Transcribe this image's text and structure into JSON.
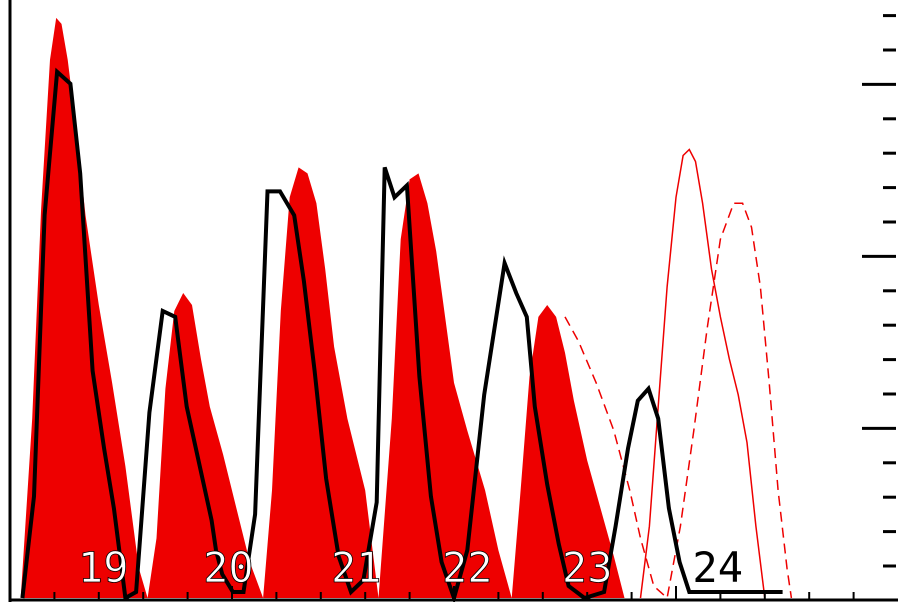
{
  "chart_data": {
    "type": "area",
    "title": "",
    "xlabel": "",
    "ylabel": "",
    "grid": false,
    "legend": "none",
    "xlim": [
      0,
      100
    ],
    "ylim": [
      0,
      100
    ],
    "colors": {
      "observed_fill": "#ee0000",
      "prediction_line": "#ee0000",
      "overlay_line": "#000000"
    },
    "cycle_labels": [
      {
        "text": "19",
        "x": 10.5
      },
      {
        "text": "20",
        "x": 24.6
      },
      {
        "text": "21",
        "x": 39.0
      },
      {
        "text": "22",
        "x": 51.5
      },
      {
        "text": "23",
        "x": 65.0
      },
      {
        "text": "24",
        "x": 79.7
      }
    ],
    "series": [
      {
        "style": "filled-area",
        "x": [
          1.2,
          2.5,
          3.5,
          4.5,
          5.2,
          5.8,
          6.5,
          7.5,
          8.5,
          10.0,
          11.5,
          13.0,
          14.5,
          15.5,
          16.5,
          17.5,
          18.5,
          19.5,
          20.5,
          21.5,
          22.5,
          24.0,
          25.5,
          27.0,
          28.5,
          29.5,
          30.5,
          31.5,
          32.5,
          33.5,
          34.5,
          35.5,
          36.5,
          38.0,
          40.0,
          41.5,
          43.0,
          44.0,
          45.0,
          46.0,
          47.0,
          48.0,
          49.0,
          50.0,
          51.5,
          53.5,
          55.0,
          56.5,
          57.5,
          58.5,
          59.5,
          60.5,
          61.5,
          62.5,
          63.5,
          65.0,
          66.5,
          68.0,
          69.2
        ],
        "y": [
          0,
          30,
          65,
          90,
          97,
          96,
          90,
          78,
          64,
          49,
          36,
          22,
          5,
          0,
          10,
          35,
          48,
          51,
          49,
          40,
          32,
          24,
          15,
          6,
          0,
          18,
          48,
          67,
          72,
          71,
          66,
          55,
          42,
          30,
          18,
          0,
          30,
          60,
          70,
          71,
          66,
          58,
          47,
          36,
          28,
          18,
          8,
          0,
          18,
          37,
          47,
          49,
          47,
          41,
          33,
          23,
          15,
          7,
          0
        ]
      },
      {
        "style": "solid-thin",
        "x": [
          71.0,
          72.0,
          73.0,
          74.0,
          75.0,
          75.8,
          76.5,
          77.2,
          78.0,
          79.0,
          80.0,
          81.0,
          82.0,
          83.0,
          84.0,
          85.0
        ],
        "y": [
          0,
          12,
          32,
          52,
          67,
          74,
          75,
          73,
          66,
          55,
          47,
          40,
          34,
          26,
          12,
          0
        ]
      },
      {
        "style": "dashed-thin",
        "x": [
          62.5,
          64.0,
          66.0,
          68.0,
          69.8,
          71.0,
          72.5,
          74.0,
          75.5,
          77.0,
          78.5,
          80.0,
          81.5,
          82.5,
          83.5,
          84.5,
          85.5,
          86.5,
          87.5,
          88.0
        ],
        "y": [
          47,
          43,
          36,
          28,
          18,
          10,
          2,
          0,
          12,
          28,
          45,
          60,
          66,
          66,
          62,
          52,
          36,
          18,
          5,
          0
        ]
      },
      {
        "style": "solid-thick",
        "x": [
          1.4,
          2.7,
          3.9,
          5.3,
          6.8,
          7.9,
          9.3,
          10.6,
          11.7,
          13.0,
          14.2,
          15.7,
          17.2,
          18.6,
          19.9,
          22.7,
          23.2,
          23.9,
          25.1,
          26.3,
          27.6,
          29.0,
          30.4,
          32.0,
          33.1,
          34.3,
          35.6,
          37.0,
          38.4,
          39.8,
          41.3,
          42.2,
          43.3,
          44.7,
          46.1,
          47.4,
          48.6,
          50.0,
          51.5,
          53.4,
          55.7,
          57.0,
          58.2,
          59.1,
          60.5,
          61.8,
          62.9,
          64.7,
          66.9,
          68.2,
          69.6,
          70.7,
          71.9,
          73.0,
          74.2,
          75.4,
          76.5,
          77.7,
          79.0,
          80.4,
          81.7,
          83.1,
          84.5,
          85.8,
          87.0
        ],
        "y": [
          0,
          17,
          64,
          88,
          86,
          71,
          38,
          25,
          15,
          0,
          1,
          31,
          48,
          47,
          32,
          13,
          8,
          4,
          1,
          1,
          14,
          68,
          68,
          64,
          53,
          38,
          20,
          7,
          1,
          3,
          16,
          72,
          67,
          69,
          37,
          17,
          6,
          0,
          8,
          34,
          56,
          51,
          47,
          32,
          19,
          9,
          2,
          0,
          1,
          12,
          25,
          33,
          35,
          30,
          15,
          6,
          1,
          1,
          1,
          1,
          1,
          1,
          1,
          1,
          1
        ]
      }
    ]
  }
}
